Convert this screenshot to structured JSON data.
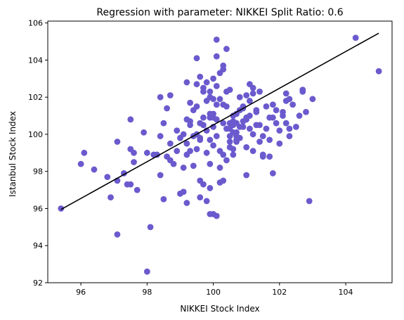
{
  "chart_data": {
    "type": "scatter",
    "title": "Regression with parameter: NIKKEI Split Ratio: 0.6",
    "xlabel": "NIKKEI Stock Index",
    "ylabel": "Istanbul Stock Index",
    "xlim": [
      95.0,
      105.4
    ],
    "ylim": [
      92.0,
      106.1
    ],
    "xticks": [
      96,
      98,
      100,
      102,
      104
    ],
    "xtick_labels": [
      "96",
      "98",
      "100",
      "102",
      "104"
    ],
    "yticks": [
      92,
      94,
      96,
      98,
      100,
      102,
      104,
      106
    ],
    "ytick_labels": [
      "92",
      "94",
      "96",
      "98",
      "100",
      "102",
      "104",
      "106"
    ],
    "grid": false,
    "point_color": "#6a5acd",
    "line_color": "#000000",
    "points": [
      [
        95.4,
        96.0
      ],
      [
        96.1,
        99.0
      ],
      [
        96.0,
        98.4
      ],
      [
        96.4,
        98.1
      ],
      [
        96.8,
        97.7
      ],
      [
        96.9,
        96.6
      ],
      [
        97.1,
        99.6
      ],
      [
        97.1,
        97.5
      ],
      [
        97.3,
        97.9
      ],
      [
        97.4,
        97.3
      ],
      [
        97.5,
        97.3
      ],
      [
        97.6,
        98.5
      ],
      [
        97.7,
        97.0
      ],
      [
        97.5,
        99.2
      ],
      [
        97.6,
        99.0
      ],
      [
        97.5,
        100.8
      ],
      [
        97.1,
        94.6
      ],
      [
        97.9,
        100.1
      ],
      [
        98.0,
        99.0
      ],
      [
        98.1,
        95.0
      ],
      [
        98.0,
        92.6
      ],
      [
        98.3,
        98.9
      ],
      [
        98.4,
        99.9
      ],
      [
        98.4,
        102.0
      ],
      [
        98.5,
        96.5
      ],
      [
        98.6,
        98.8
      ],
      [
        98.6,
        101.4
      ],
      [
        98.7,
        102.1
      ],
      [
        98.7,
        98.6
      ],
      [
        98.8,
        98.4
      ],
      [
        98.9,
        99.1
      ],
      [
        99.0,
        96.8
      ],
      [
        99.1,
        96.9
      ],
      [
        99.1,
        98.2
      ],
      [
        99.2,
        98.9
      ],
      [
        99.3,
        99.1
      ],
      [
        99.2,
        96.3
      ],
      [
        99.3,
        100.7
      ],
      [
        99.4,
        101.3
      ],
      [
        99.5,
        104.1
      ],
      [
        99.5,
        100.0
      ],
      [
        99.4,
        98.3
      ],
      [
        99.5,
        99.2
      ],
      [
        99.6,
        99.8
      ],
      [
        99.6,
        100.6
      ],
      [
        99.7,
        100.9
      ],
      [
        99.7,
        102.3
      ],
      [
        99.8,
        102.8
      ],
      [
        99.8,
        101.8
      ],
      [
        99.9,
        102.0
      ],
      [
        99.9,
        101.1
      ],
      [
        100.0,
        100.4
      ],
      [
        100.0,
        99.4
      ],
      [
        100.0,
        100.9
      ],
      [
        100.1,
        101.6
      ],
      [
        100.1,
        102.6
      ],
      [
        100.2,
        103.3
      ],
      [
        100.2,
        99.1
      ],
      [
        100.3,
        98.9
      ],
      [
        100.3,
        97.5
      ],
      [
        100.4,
        101.5
      ],
      [
        100.4,
        102.3
      ],
      [
        100.5,
        100.3
      ],
      [
        100.5,
        99.6
      ],
      [
        100.6,
        101.0
      ],
      [
        100.6,
        98.9
      ],
      [
        100.7,
        100.6
      ],
      [
        100.8,
        101.3
      ],
      [
        100.8,
        99.8
      ],
      [
        100.9,
        100.4
      ],
      [
        101.0,
        100.9
      ],
      [
        101.0,
        99.3
      ],
      [
        101.1,
        101.8
      ],
      [
        101.2,
        102.2
      ],
      [
        101.2,
        100.0
      ],
      [
        101.3,
        100.5
      ],
      [
        101.4,
        99.6
      ],
      [
        101.5,
        99.9
      ],
      [
        101.5,
        98.8
      ],
      [
        101.6,
        100.3
      ],
      [
        101.7,
        99.7
      ],
      [
        101.8,
        101.6
      ],
      [
        101.8,
        97.9
      ],
      [
        101.9,
        100.6
      ],
      [
        102.0,
        100.2
      ],
      [
        102.1,
        101.2
      ],
      [
        102.2,
        101.8
      ],
      [
        102.2,
        100.6
      ],
      [
        102.3,
        100.3
      ],
      [
        102.4,
        101.6
      ],
      [
        102.6,
        101.0
      ],
      [
        102.7,
        102.4
      ],
      [
        102.7,
        102.3
      ],
      [
        102.9,
        96.4
      ],
      [
        103.0,
        101.9
      ],
      [
        104.3,
        105.2
      ],
      [
        105.0,
        103.4
      ],
      [
        100.1,
        105.1
      ],
      [
        100.1,
        104.2
      ],
      [
        100.4,
        104.6
      ],
      [
        100.3,
        103.5
      ],
      [
        100.3,
        103.7
      ],
      [
        99.9,
        95.7
      ],
      [
        100.0,
        95.7
      ],
      [
        100.1,
        95.6
      ],
      [
        99.8,
        96.4
      ],
      [
        99.7,
        97.3
      ],
      [
        99.6,
        97.5
      ],
      [
        100.2,
        98.2
      ],
      [
        99.9,
        98.4
      ],
      [
        100.6,
        99.2
      ],
      [
        100.7,
        99.7
      ],
      [
        100.9,
        101.4
      ],
      [
        101.1,
        102.7
      ],
      [
        101.2,
        102.5
      ],
      [
        101.4,
        102.3
      ],
      [
        100.8,
        102.0
      ],
      [
        100.5,
        102.4
      ],
      [
        100.0,
        103.0
      ],
      [
        99.7,
        102.5
      ],
      [
        99.6,
        103.1
      ],
      [
        99.5,
        102.7
      ],
      [
        99.2,
        102.8
      ],
      [
        99.2,
        100.8
      ],
      [
        99.3,
        101.7
      ],
      [
        99.5,
        101.5
      ],
      [
        99.8,
        100.2
      ],
      [
        99.9,
        99.7
      ],
      [
        100.1,
        99.9
      ],
      [
        100.2,
        101.9
      ],
      [
        100.3,
        101.6
      ],
      [
        100.6,
        100.7
      ],
      [
        100.7,
        101.1
      ],
      [
        100.9,
        101.5
      ],
      [
        101.0,
        102.1
      ],
      [
        101.3,
        101.2
      ],
      [
        101.6,
        101.5
      ],
      [
        101.8,
        100.9
      ],
      [
        102.1,
        101.0
      ],
      [
        102.3,
        99.9
      ],
      [
        101.7,
        98.8
      ],
      [
        101.2,
        99.1
      ],
      [
        100.7,
        99.9
      ],
      [
        100.5,
        99.3
      ],
      [
        100.3,
        100.6
      ],
      [
        100.1,
        100.8
      ],
      [
        99.9,
        100.9
      ],
      [
        99.7,
        100.5
      ],
      [
        99.6,
        99.7
      ],
      [
        99.4,
        99.9
      ],
      [
        99.3,
        100.5
      ],
      [
        99.1,
        100.0
      ],
      [
        98.9,
        100.2
      ],
      [
        98.7,
        99.5
      ],
      [
        99.0,
        99.8
      ],
      [
        98.4,
        97.8
      ],
      [
        98.2,
        98.9
      ],
      [
        98.5,
        100.6
      ],
      [
        99.2,
        99.5
      ],
      [
        99.8,
        99.0
      ],
      [
        100.4,
        98.6
      ],
      [
        100.2,
        97.4
      ],
      [
        99.6,
        96.6
      ],
      [
        99.9,
        97.1
      ],
      [
        101.0,
        97.8
      ],
      [
        101.5,
        98.9
      ],
      [
        102.0,
        99.5
      ],
      [
        102.5,
        100.4
      ],
      [
        100.0,
        101.9
      ],
      [
        99.9,
        102.3
      ],
      [
        100.0,
        101.1
      ],
      [
        100.7,
        100.1
      ],
      [
        100.9,
        100.7
      ],
      [
        101.1,
        101.0
      ],
      [
        101.4,
        100.5
      ],
      [
        101.7,
        100.9
      ],
      [
        101.9,
        101.3
      ],
      [
        102.2,
        102.2
      ],
      [
        102.3,
        101.9
      ],
      [
        102.8,
        101.2
      ],
      [
        100.4,
        100.3
      ],
      [
        100.5,
        100.6
      ],
      [
        100.6,
        100.1
      ],
      [
        100.6,
        100.5
      ],
      [
        100.8,
        100.4
      ],
      [
        101.0,
        100.8
      ],
      [
        101.3,
        101.3
      ],
      [
        101.1,
        100.3
      ],
      [
        100.7,
        99.6
      ],
      [
        100.5,
        99.9
      ]
    ],
    "regression_line": {
      "x": [
        95.4,
        105.0
      ],
      "y": [
        95.95,
        105.45
      ]
    }
  }
}
